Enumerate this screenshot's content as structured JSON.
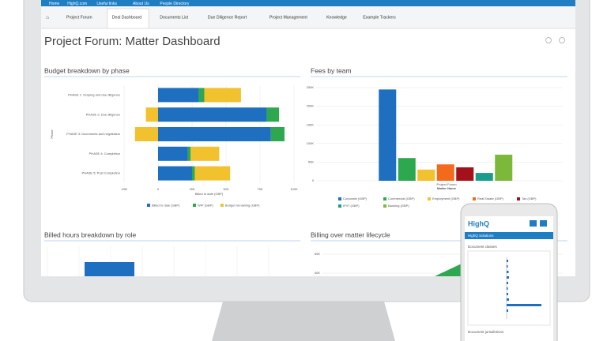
{
  "nav": {
    "items": [
      "Home",
      "HighQ.com",
      "Useful links",
      "About Us",
      "People Directory"
    ]
  },
  "tabs": {
    "items": [
      "Project Forum",
      "Deal Dashboard",
      "Documents List",
      "Due Diligence Report",
      "Project Management",
      "Knowledge",
      "Example Trackers"
    ],
    "active": 1
  },
  "page": {
    "title": "Project Forum: Matter Dashboard"
  },
  "panels": [
    {
      "title": "Budget breakdown by phase",
      "chart": {
        "type": "bar",
        "orientation": "horizontal",
        "categories": [
          "PHASE 1: Scoping and due diligence",
          "PHASE 2: Due diligence",
          "PHASE 3: Documents and negotiation",
          "PHASE 4: Completion",
          "PHASE 5: Post Completion"
        ],
        "series": [
          {
            "name": "Billed to date (GBP)",
            "color": "#1f6fc0",
            "values": [
              30000,
              80000,
              83000,
              22000,
              25000
            ]
          },
          {
            "name": "WIP (GBP)",
            "color": "#2ea84f",
            "values": [
              4000,
              9000,
              10000,
              2000,
              2000
            ]
          },
          {
            "name": "Budget remaining (GBP)",
            "color": "#f2c12e",
            "values": [
              27000,
              -9000,
              -17000,
              21000,
              26000
            ]
          }
        ],
        "xlim": [
          -25000,
          100000
        ],
        "xticks": [
          {
            "value": -25000,
            "label": "-25K"
          },
          0,
          {
            "value": 25000,
            "label": "25K"
          },
          {
            "value": 50000,
            "label": "50K"
          },
          {
            "value": 75000,
            "label": "75K"
          },
          {
            "value": 100000,
            "label": "100K"
          }
        ],
        "x_label": "Billed to date (GBP)",
        "y_label": "Phase",
        "grid": true
      }
    },
    {
      "title": "Fees by team",
      "chart": {
        "type": "bar",
        "orientation": "vertical",
        "categories": [
          "Project Forum"
        ],
        "series": [
          {
            "name": "Corporate (GBP)",
            "color": "#1f6fc0",
            "values": [
              245000
            ]
          },
          {
            "name": "Commercial (GBP)",
            "color": "#2ea84f",
            "values": [
              61000
            ]
          },
          {
            "name": "Employment (GBP)",
            "color": "#f2c12e",
            "values": [
              30000
            ]
          },
          {
            "name": "Real Estate (GBP)",
            "color": "#f26b1d",
            "values": [
              44000
            ]
          },
          {
            "name": "Tax (GBP)",
            "color": "#a3121b",
            "values": [
              36000
            ]
          },
          {
            "name": "IP/IT (GBP)",
            "color": "#1a9c8c",
            "values": [
              21000
            ]
          },
          {
            "name": "Banking (GBP)",
            "color": "#7cb83a",
            "values": [
              70000
            ]
          }
        ],
        "ylim": [
          0,
          250000
        ],
        "yticks": [
          0,
          {
            "value": 50000,
            "label": "50K"
          },
          {
            "value": 100000,
            "label": "100K"
          },
          {
            "value": 150000,
            "label": "150K"
          },
          {
            "value": 200000,
            "label": "200K"
          },
          {
            "value": 250000,
            "label": "250K"
          }
        ],
        "x_label": "Matter Name",
        "grid": true
      }
    },
    {
      "title": "Billed hours breakdown by role"
    },
    {
      "title": "Billing over matter lifecycle",
      "chart": {
        "type": "line",
        "ylim": [
          40000,
          60000
        ],
        "yticks": [
          {
            "value": 40000,
            "label": "40K"
          },
          {
            "value": 60000,
            "label": "60K"
          }
        ],
        "grid": true
      }
    }
  ],
  "phone": {
    "logo": "HighQ",
    "menu": "HighQ Solutions",
    "sections": [
      "Document classes",
      "Document jurisdictions"
    ]
  }
}
